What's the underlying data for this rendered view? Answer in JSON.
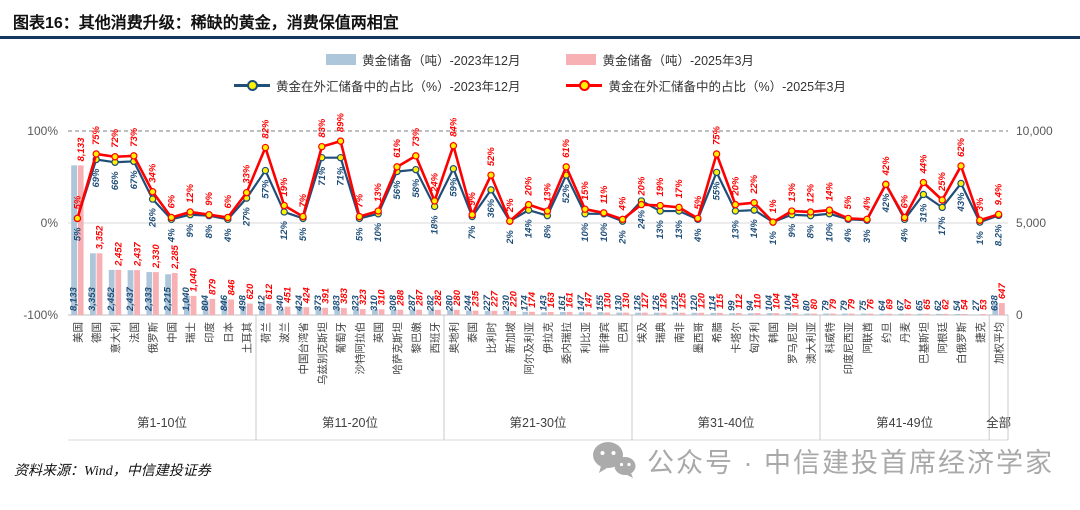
{
  "title": "图表16：其他消费升级：稀缺的黄金，消费保值两相宜",
  "source": "资料来源：Wind，中信建投证券",
  "watermark": {
    "icon": "wechat-icon",
    "text": "公众号 · 中信建投首席经济学家"
  },
  "legend": [
    {
      "label": "黄金储备（吨）-2023年12月",
      "type": "bar",
      "color": "#AEC6DA"
    },
    {
      "label": "黄金储备（吨）-2025年3月",
      "type": "bar",
      "color": "#F7B0B3"
    },
    {
      "label": "黄金在外汇储备中的占比（%）-2023年12月",
      "type": "line",
      "color": "#1F4E79"
    },
    {
      "label": "黄金在外汇储备中的占比（%）-2025年3月",
      "type": "line",
      "color": "#FF0000"
    }
  ],
  "chart_data": {
    "type": "combo-bar-line",
    "categories": [
      "美国",
      "德国",
      "意大利",
      "法国",
      "俄罗斯",
      "中国",
      "瑞士",
      "印度",
      "日本",
      "土耳其",
      "荷兰",
      "波兰",
      "中国台湾省",
      "乌兹别克斯坦",
      "葡萄牙",
      "沙特阿拉伯",
      "英国",
      "哈萨克斯坦",
      "黎巴嫩",
      "西班牙",
      "奥地利",
      "泰国",
      "比利时",
      "新加坡",
      "阿尔及利亚",
      "伊拉克",
      "委内瑞拉",
      "利比亚",
      "菲律宾",
      "巴西",
      "埃及",
      "瑞典",
      "南非",
      "墨西哥",
      "希腊",
      "卡塔尔",
      "匈牙利",
      "韩国",
      "罗马尼亚",
      "澳大利亚",
      "科威特",
      "印度尼西亚",
      "阿联酋",
      "约旦",
      "丹麦",
      "巴基斯坦",
      "阿根廷",
      "白俄罗斯",
      "捷克",
      "加权平均"
    ],
    "groups": [
      {
        "label": "第1-10位",
        "count": 10
      },
      {
        "label": "第11-20位",
        "count": 10
      },
      {
        "label": "第21-30位",
        "count": 10
      },
      {
        "label": "第31-40位",
        "count": 10
      },
      {
        "label": "第41-49位",
        "count": 9
      },
      {
        "label": "全部",
        "count": 1
      }
    ],
    "series": [
      {
        "name": "黄金储备（吨）-2023年12月",
        "type": "bar",
        "axis": "right",
        "color": "#AEC6DA",
        "values": [
          8133,
          3353,
          2452,
          2437,
          2333,
          2215,
          1040,
          804,
          846,
          498,
          612,
          340,
          424,
          373,
          383,
          323,
          310,
          308,
          287,
          282,
          280,
          244,
          227,
          230,
          174,
          143,
          161,
          147,
          155,
          130,
          126,
          126,
          125,
          120,
          114,
          99,
          94,
          104,
          104,
          80,
          79,
          79,
          75,
          64,
          67,
          65,
          62,
          54,
          27,
          638
        ]
      },
      {
        "name": "黄金储备（吨）-2025年3月",
        "type": "bar",
        "axis": "right",
        "color": "#F7B0B3",
        "values": [
          8133,
          3352,
          2452,
          2437,
          2330,
          2285,
          1040,
          879,
          846,
          620,
          612,
          451,
          424,
          391,
          383,
          323,
          310,
          288,
          287,
          282,
          280,
          235,
          227,
          220,
          174,
          163,
          161,
          147,
          130,
          130,
          127,
          126,
          125,
          120,
          115,
          112,
          110,
          104,
          104,
          80,
          79,
          79,
          76,
          69,
          67,
          65,
          62,
          54,
          53,
          647
        ]
      },
      {
        "name": "黄金在外汇储备中的占比（%）-2023年12月",
        "type": "line",
        "axis": "left",
        "color": "#1F4E79",
        "values": [
          5,
          69,
          66,
          67,
          26,
          4,
          9,
          8,
          4,
          27,
          57,
          12,
          5,
          71,
          71,
          5,
          10,
          56,
          58,
          18,
          59,
          7,
          36,
          2,
          14,
          8,
          52,
          10,
          10,
          2,
          24,
          13,
          13,
          4,
          55,
          13,
          14,
          1,
          9,
          8,
          10,
          4,
          3,
          42,
          4,
          31,
          17,
          43,
          1,
          8.2
        ]
      },
      {
        "name": "黄金在外汇储备中的占比（%）-2025年3月",
        "type": "line",
        "axis": "left",
        "color": "#FF0000",
        "values": [
          5,
          75,
          72,
          73,
          34,
          6,
          12,
          9,
          6,
          33,
          82,
          19,
          7,
          83,
          89,
          7,
          13,
          61,
          73,
          24,
          84,
          9,
          52,
          2,
          20,
          13,
          61,
          15,
          11,
          4,
          20,
          19,
          17,
          5,
          75,
          20,
          22,
          1,
          13,
          12,
          14,
          5,
          4,
          42,
          6,
          44,
          25,
          62,
          3,
          9.4
        ]
      }
    ],
    "left_axis": {
      "ticks": [
        "100%",
        "0%",
        "-100%"
      ],
      "min": -100,
      "max": 100
    },
    "right_axis": {
      "ticks": [
        "10,000",
        "5,000",
        "0"
      ],
      "min": 0,
      "max": 10000
    },
    "marker_color": "#FFF100"
  }
}
